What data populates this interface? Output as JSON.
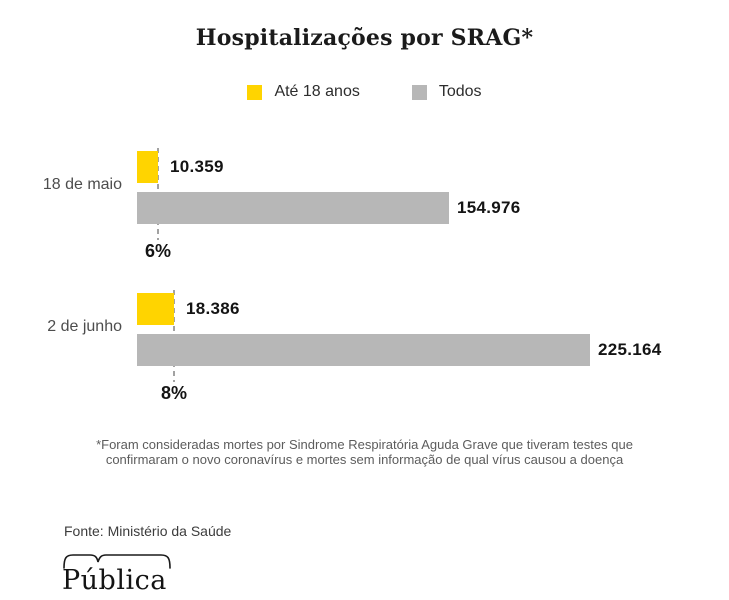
{
  "title": "Hospitalizações por SRAG*",
  "legend": [
    {
      "label": "Até 18 anos",
      "color": "#FFD400"
    },
    {
      "label": "Todos",
      "color": "#B7B7B7"
    }
  ],
  "chart_data": {
    "type": "bar",
    "orientation": "horizontal",
    "title": "Hospitalizações por SRAG*",
    "categories": [
      "18 de maio",
      "2 de junho"
    ],
    "series": [
      {
        "name": "Até 18 anos",
        "color": "#FFD400",
        "values": [
          10359,
          18386
        ]
      },
      {
        "name": "Todos",
        "color": "#B7B7B7",
        "values": [
          154976,
          225164
        ]
      }
    ],
    "percent_of_total": [
      "6%",
      "8%"
    ],
    "xlim": [
      0,
      225164
    ],
    "grid": false,
    "legend_position": "top"
  },
  "groups": [
    {
      "category": "18 de maio",
      "young_label": "10.359",
      "all_label": "154.976",
      "percent": "6%"
    },
    {
      "category": "2 de junho",
      "young_label": "18.386",
      "all_label": "225.164",
      "percent": "8%"
    }
  ],
  "footnote_line1": "*Foram consideradas mortes por Sindrome Respiratória Aguda Grave que tiveram testes que",
  "footnote_line2": "confirmaram o novo coronavírus e mortes sem informação de qual vírus causou a doença",
  "source": "Fonte: Ministério da Saúde",
  "logo_text": "Pública",
  "colors": {
    "young": "#FFD400",
    "all": "#B7B7B7",
    "dashed_line": "#A2A2A2"
  }
}
